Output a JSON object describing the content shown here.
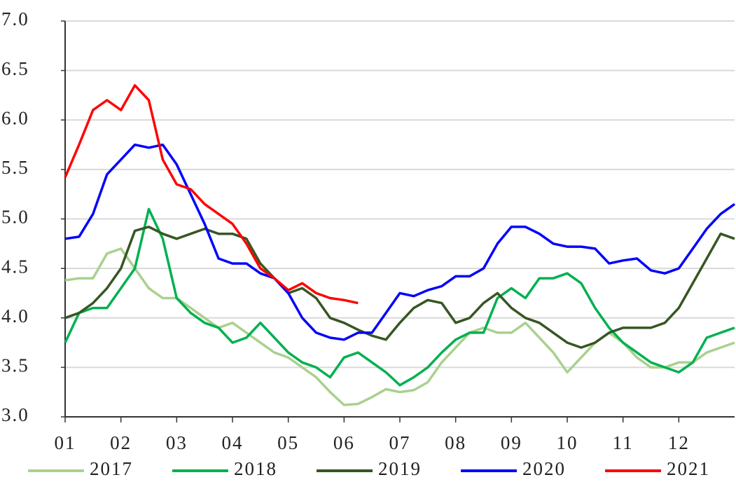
{
  "chart_data": {
    "type": "line",
    "x": [
      1,
      1.25,
      1.5,
      1.75,
      2,
      2.25,
      2.5,
      2.75,
      3,
      3.25,
      3.5,
      3.75,
      4,
      4.25,
      4.5,
      4.75,
      5,
      5.25,
      5.5,
      5.75,
      6,
      6.25,
      6.5,
      6.75,
      7,
      7.25,
      7.5,
      7.75,
      8,
      8.25,
      8.5,
      8.75,
      9,
      9.25,
      9.5,
      9.75,
      10,
      10.25,
      10.5,
      10.75,
      11,
      11.25,
      11.5,
      11.75,
      12,
      12.25,
      12.5,
      12.75,
      13
    ],
    "xlim": [
      1,
      13
    ],
    "xticks": [
      {
        "value": 1,
        "label": "01"
      },
      {
        "value": 2,
        "label": "02"
      },
      {
        "value": 3,
        "label": "03"
      },
      {
        "value": 4,
        "label": "04"
      },
      {
        "value": 5,
        "label": "05"
      },
      {
        "value": 6,
        "label": "06"
      },
      {
        "value": 7,
        "label": "07"
      },
      {
        "value": 8,
        "label": "08"
      },
      {
        "value": 9,
        "label": "09"
      },
      {
        "value": 10,
        "label": "10"
      },
      {
        "value": 11,
        "label": "11"
      },
      {
        "value": 12,
        "label": "12"
      }
    ],
    "ylim": [
      3,
      7
    ],
    "yticks": [
      {
        "value": 3,
        "label": "3.0"
      },
      {
        "value": 3.5,
        "label": "3.5"
      },
      {
        "value": 4,
        "label": "4.0"
      },
      {
        "value": 4.5,
        "label": "4.5"
      },
      {
        "value": 5,
        "label": "5.0"
      },
      {
        "value": 5.5,
        "label": "5.5"
      },
      {
        "value": 6,
        "label": "6.0"
      },
      {
        "value": 6.5,
        "label": "6.5"
      },
      {
        "value": 7,
        "label": "7.0"
      }
    ],
    "grid": true,
    "legend": "bottom",
    "series": [
      {
        "name": "2017",
        "color": "#a9d18e",
        "values": [
          4.38,
          4.4,
          4.4,
          4.65,
          4.7,
          4.5,
          4.3,
          4.2,
          4.2,
          4.1,
          4.0,
          3.9,
          3.95,
          3.85,
          3.75,
          3.65,
          3.6,
          3.5,
          3.4,
          3.25,
          3.12,
          3.13,
          3.2,
          3.28,
          3.25,
          3.27,
          3.35,
          3.55,
          3.7,
          3.85,
          3.9,
          3.85,
          3.85,
          3.95,
          3.8,
          3.65,
          3.45,
          3.6,
          3.75,
          3.85,
          3.75,
          3.6,
          3.5,
          3.5,
          3.55,
          3.55,
          3.65,
          3.7,
          3.75
        ]
      },
      {
        "name": "2018",
        "color": "#00b050",
        "values": [
          3.75,
          4.05,
          4.1,
          4.1,
          4.3,
          4.5,
          5.1,
          4.8,
          4.2,
          4.05,
          3.95,
          3.9,
          3.75,
          3.8,
          3.95,
          3.8,
          3.65,
          3.55,
          3.5,
          3.4,
          3.6,
          3.65,
          3.55,
          3.45,
          3.32,
          3.4,
          3.5,
          3.65,
          3.78,
          3.85,
          3.85,
          4.2,
          4.3,
          4.2,
          4.4,
          4.4,
          4.45,
          4.35,
          4.1,
          3.9,
          3.75,
          3.65,
          3.55,
          3.5,
          3.45,
          3.55,
          3.8,
          3.85,
          3.9
        ]
      },
      {
        "name": "2019",
        "color": "#375623",
        "values": [
          4.0,
          4.05,
          4.15,
          4.3,
          4.5,
          4.88,
          4.92,
          4.85,
          4.8,
          4.85,
          4.9,
          4.85,
          4.85,
          4.8,
          4.55,
          4.4,
          4.25,
          4.3,
          4.2,
          4.0,
          3.95,
          3.88,
          3.82,
          3.78,
          3.95,
          4.1,
          4.18,
          4.15,
          3.95,
          4.0,
          4.15,
          4.25,
          4.1,
          4.0,
          3.95,
          3.85,
          3.75,
          3.7,
          3.75,
          3.85,
          3.9,
          3.9,
          3.9,
          3.95,
          4.1,
          4.35,
          4.6,
          4.85,
          4.8
        ]
      },
      {
        "name": "2020",
        "color": "#0000ff",
        "values": [
          4.8,
          4.82,
          5.05,
          5.45,
          5.6,
          5.75,
          5.72,
          5.75,
          5.55,
          5.25,
          4.95,
          4.6,
          4.55,
          4.55,
          4.45,
          4.4,
          4.25,
          4.0,
          3.85,
          3.8,
          3.78,
          3.85,
          3.85,
          4.05,
          4.25,
          4.22,
          4.28,
          4.32,
          4.42,
          4.42,
          4.5,
          4.75,
          4.92,
          4.92,
          4.85,
          4.75,
          4.72,
          4.72,
          4.7,
          4.55,
          4.58,
          4.6,
          4.48,
          4.45,
          4.5,
          4.7,
          4.9,
          5.05,
          5.15
        ]
      },
      {
        "name": "2021",
        "color": "#ff0000",
        "values": [
          5.42,
          5.75,
          6.1,
          6.2,
          6.1,
          6.35,
          6.2,
          5.6,
          5.35,
          5.3,
          5.15,
          5.05,
          4.95,
          4.75,
          4.5,
          4.4,
          4.28,
          4.35,
          4.25,
          4.2,
          4.18,
          4.15,
          null,
          null,
          null,
          null,
          null,
          null,
          null,
          null,
          null,
          null,
          null,
          null,
          null,
          null,
          null,
          null,
          null,
          null,
          null,
          null,
          null,
          null,
          null,
          null,
          null,
          null,
          null
        ]
      }
    ]
  }
}
